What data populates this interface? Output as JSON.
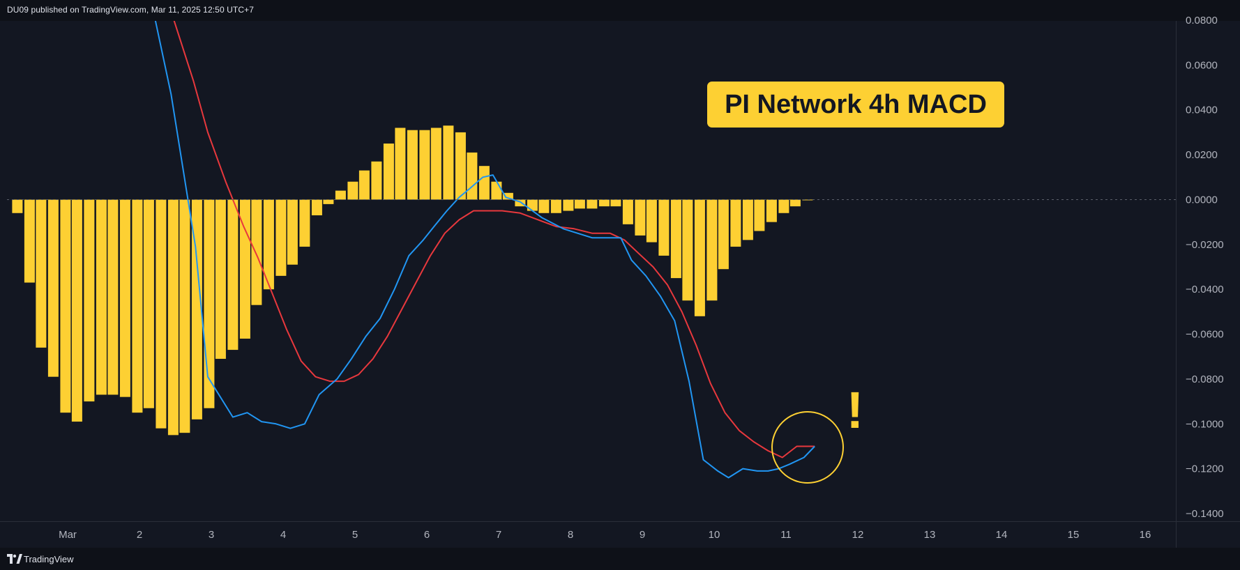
{
  "header": {
    "attribution": "DU09 published on TradingView.com, Mar 11, 2025 12:50 UTC+7"
  },
  "footer": {
    "brand": "TradingView",
    "logo_icon": "tradingview-logo-icon"
  },
  "annotation": {
    "label": "PI Network 4h MACD",
    "warning_mark": "!"
  },
  "colors": {
    "background": "#131722",
    "histogram": "#fdd033",
    "macd_line": "#2196f3",
    "signal_line": "#e8383d",
    "label_bg": "#fdd033",
    "label_text": "#131722",
    "axis_text": "#b2b5be",
    "zero_line": "#5d606b"
  },
  "chart_data": {
    "type": "bar",
    "title": "PI Network 4h MACD",
    "xlabel": "",
    "ylabel": "",
    "ylim": [
      -0.14,
      0.08
    ],
    "grid": false,
    "y_ticks": [
      "0.0800",
      "0.0600",
      "0.0400",
      "0.0200",
      "0.0000",
      "−0.0200",
      "−0.0400",
      "−0.0600",
      "−0.0800",
      "−0.1000",
      "−0.1200",
      "−0.1400"
    ],
    "y_tick_values": [
      0.08,
      0.06,
      0.04,
      0.02,
      0.0,
      -0.02,
      -0.04,
      -0.06,
      -0.08,
      -0.1,
      -0.12,
      -0.14
    ],
    "x_tick_labels": [
      "Mar",
      "2",
      "3",
      "4",
      "5",
      "6",
      "7",
      "8",
      "9",
      "10",
      "11",
      "12",
      "13",
      "14",
      "15",
      "16"
    ],
    "x_tick_days": [
      1,
      2,
      3,
      4,
      5,
      6,
      7,
      8,
      9,
      10,
      11,
      12,
      13,
      14,
      15,
      16
    ],
    "series": [
      {
        "type": "bar",
        "x": [
          0.3,
          0.47,
          0.63,
          0.8,
          0.97,
          1.13,
          1.3,
          1.47,
          1.63,
          1.8,
          1.97,
          2.13,
          2.3,
          2.47,
          2.63,
          2.8,
          2.97,
          3.13,
          3.3,
          3.47,
          3.63,
          3.8,
          3.97,
          4.13,
          4.3,
          4.47,
          4.63,
          4.8,
          4.97,
          5.13,
          5.3,
          5.47,
          5.63,
          5.8,
          5.97,
          6.13,
          6.3,
          6.47,
          6.63,
          6.8,
          6.97,
          7.13,
          7.3,
          7.47,
          7.63,
          7.8,
          7.97,
          8.13,
          8.3,
          8.47,
          8.63,
          8.8,
          8.97,
          9.13,
          9.3,
          9.47,
          9.63,
          9.8,
          9.97,
          10.13,
          10.3,
          10.47,
          10.63,
          10.8,
          10.97,
          11.13,
          11.3
        ],
        "values": [
          -0.006,
          -0.037,
          -0.066,
          -0.079,
          -0.095,
          -0.099,
          -0.09,
          -0.087,
          -0.087,
          -0.088,
          -0.095,
          -0.093,
          -0.102,
          -0.105,
          -0.104,
          -0.098,
          -0.093,
          -0.071,
          -0.067,
          -0.062,
          -0.047,
          -0.04,
          -0.034,
          -0.029,
          -0.021,
          -0.007,
          -0.002,
          0.004,
          0.008,
          0.013,
          0.017,
          0.025,
          0.032,
          0.031,
          0.031,
          0.032,
          0.033,
          0.03,
          0.021,
          0.015,
          0.008,
          0.003,
          -0.003,
          -0.005,
          -0.006,
          -0.006,
          -0.005,
          -0.004,
          -0.004,
          -0.003,
          -0.003,
          -0.011,
          -0.016,
          -0.019,
          -0.025,
          -0.035,
          -0.045,
          -0.052,
          -0.045,
          -0.031,
          -0.021,
          -0.018,
          -0.014,
          -0.01,
          -0.006,
          -0.003,
          0.0
        ]
      },
      {
        "type": "line",
        "x": [
          2.22,
          2.44,
          2.78,
          2.95,
          3.3,
          3.5,
          3.7,
          3.9,
          4.1,
          4.3,
          4.5,
          4.75,
          4.95,
          5.15,
          5.35,
          5.55,
          5.75,
          5.95,
          6.1,
          6.28,
          6.45,
          6.6,
          6.78,
          6.92,
          7.1,
          7.3,
          7.6,
          7.9,
          8.3,
          8.7,
          8.85,
          9.05,
          9.25,
          9.45,
          9.65,
          9.85,
          10.05,
          10.2,
          10.4,
          10.6,
          10.75,
          10.9,
          11.05,
          11.25,
          11.4
        ],
        "values": [
          0.08,
          0.047,
          -0.021,
          -0.079,
          -0.097,
          -0.095,
          -0.099,
          -0.1,
          -0.102,
          -0.1,
          -0.087,
          -0.08,
          -0.071,
          -0.061,
          -0.053,
          -0.04,
          -0.025,
          -0.018,
          -0.012,
          -0.005,
          0.001,
          0.005,
          0.01,
          0.011,
          0.001,
          -0.001,
          -0.008,
          -0.013,
          -0.017,
          -0.017,
          -0.027,
          -0.034,
          -0.043,
          -0.054,
          -0.081,
          -0.116,
          -0.121,
          -0.124,
          -0.12,
          -0.121,
          -0.121,
          -0.12,
          -0.118,
          -0.115,
          -0.11
        ]
      },
      {
        "type": "line",
        "x": [
          2.48,
          2.75,
          2.95,
          3.2,
          3.45,
          3.65,
          3.85,
          4.05,
          4.25,
          4.45,
          4.65,
          4.85,
          5.05,
          5.25,
          5.45,
          5.65,
          5.85,
          6.05,
          6.25,
          6.45,
          6.65,
          6.85,
          7.05,
          7.3,
          7.55,
          7.8,
          8.05,
          8.3,
          8.55,
          8.75,
          8.95,
          9.15,
          9.35,
          9.55,
          9.75,
          9.95,
          10.15,
          10.35,
          10.55,
          10.75,
          10.95,
          11.15,
          11.3,
          11.4
        ],
        "values": [
          0.08,
          0.053,
          0.03,
          0.008,
          -0.012,
          -0.026,
          -0.042,
          -0.058,
          -0.072,
          -0.079,
          -0.081,
          -0.081,
          -0.078,
          -0.071,
          -0.061,
          -0.049,
          -0.037,
          -0.025,
          -0.015,
          -0.009,
          -0.005,
          -0.005,
          -0.005,
          -0.006,
          -0.009,
          -0.012,
          -0.013,
          -0.015,
          -0.015,
          -0.018,
          -0.024,
          -0.03,
          -0.038,
          -0.05,
          -0.065,
          -0.082,
          -0.095,
          -0.103,
          -0.108,
          -0.112,
          -0.115,
          -0.11,
          -0.11,
          -0.11
        ]
      }
    ]
  }
}
